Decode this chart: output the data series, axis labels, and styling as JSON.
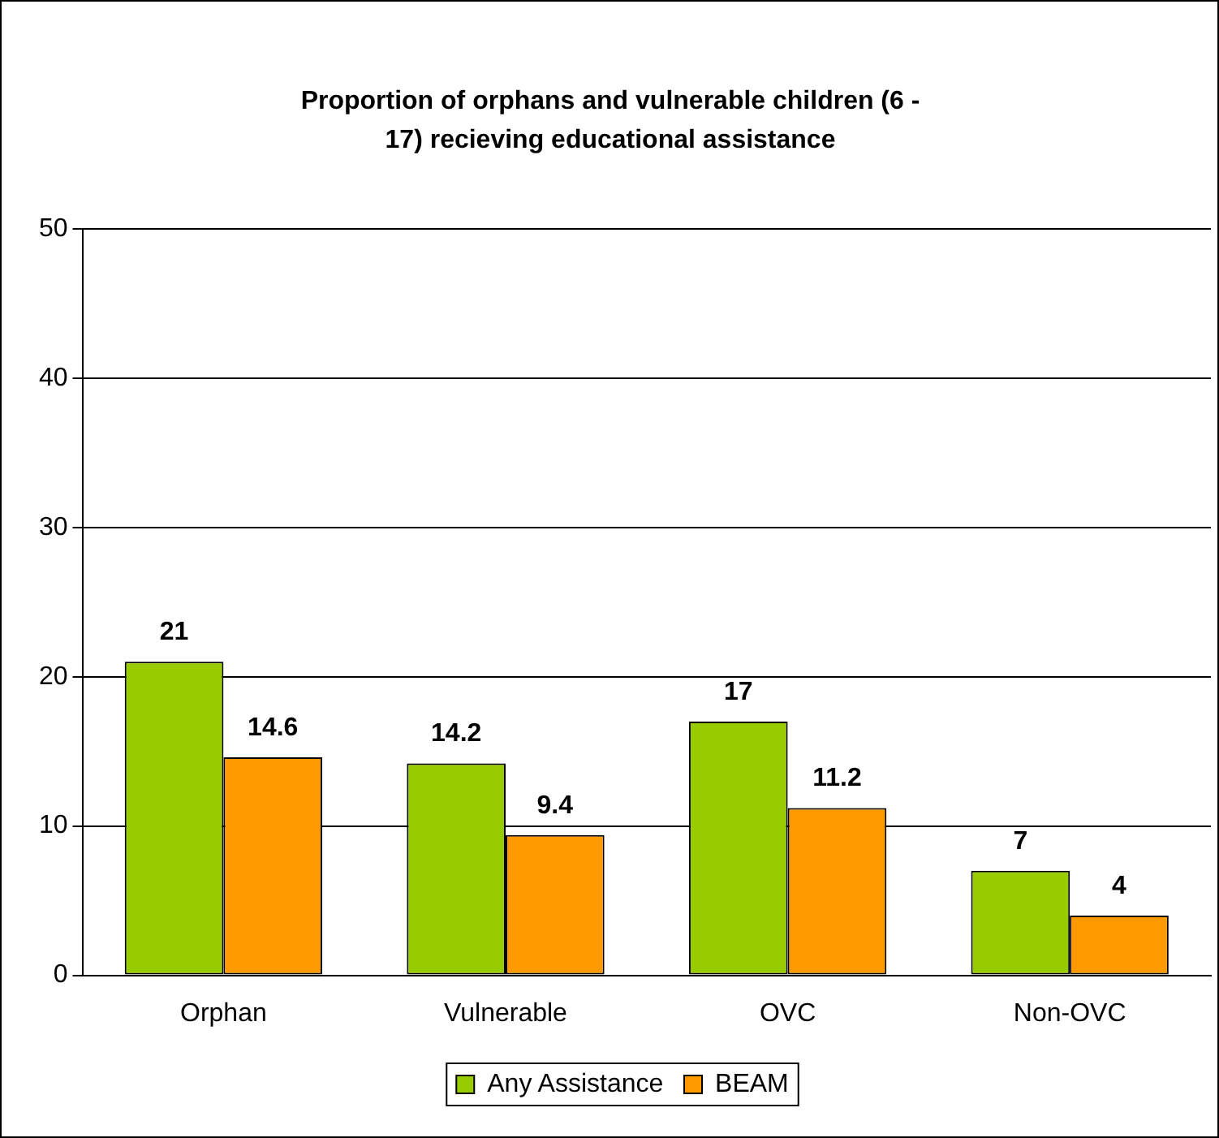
{
  "chart_data": {
    "type": "bar",
    "title": "Proportion of orphans and vulnerable children (6 - 17) recieving educational assistance",
    "categories": [
      "Orphan",
      "Vulnerable",
      "OVC",
      "Non-OVC"
    ],
    "series": [
      {
        "name": "Any Assistance",
        "color": "#99cc00",
        "values": [
          21,
          14.2,
          17,
          7
        ]
      },
      {
        "name": "BEAM",
        "color": "#ff9900",
        "values": [
          14.6,
          9.4,
          11.2,
          4
        ]
      }
    ],
    "ylim": [
      0,
      50
    ],
    "yticks": [
      0,
      10,
      20,
      30,
      40,
      50
    ],
    "grid": "y",
    "legend": "bottom",
    "data_labels": true
  }
}
